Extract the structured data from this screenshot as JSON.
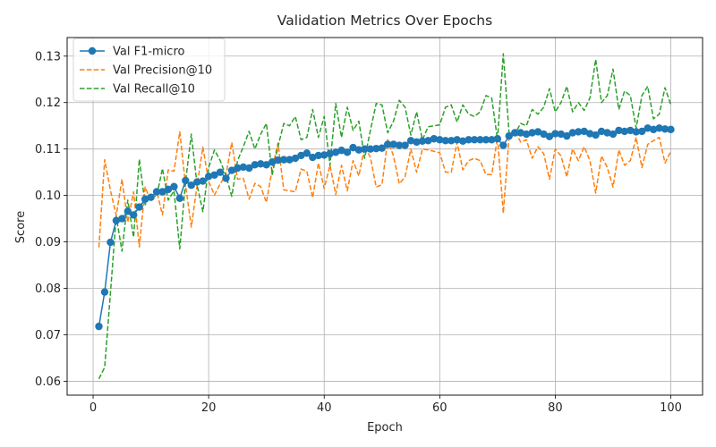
{
  "chart_data": {
    "type": "line",
    "title": "Validation Metrics Over Epochs",
    "xlabel": "Epoch",
    "ylabel": "Score",
    "xlim": [
      -4.5,
      105.5
    ],
    "ylim": [
      0.057,
      0.134
    ],
    "xticks": [
      0,
      20,
      40,
      60,
      80,
      100
    ],
    "yticks": [
      0.06,
      0.07,
      0.08,
      0.09,
      0.1,
      0.11,
      0.12,
      0.13
    ],
    "grid": true,
    "legend": "top-left",
    "x": [
      1,
      2,
      3,
      4,
      5,
      6,
      7,
      8,
      9,
      10,
      11,
      12,
      13,
      14,
      15,
      16,
      17,
      18,
      19,
      20,
      21,
      22,
      23,
      24,
      25,
      26,
      27,
      28,
      29,
      30,
      31,
      32,
      33,
      34,
      35,
      36,
      37,
      38,
      39,
      40,
      41,
      42,
      43,
      44,
      45,
      46,
      47,
      48,
      49,
      50,
      51,
      52,
      53,
      54,
      55,
      56,
      57,
      58,
      59,
      60,
      61,
      62,
      63,
      64,
      65,
      66,
      67,
      68,
      69,
      70,
      71,
      72,
      73,
      74,
      75,
      76,
      77,
      78,
      79,
      80,
      81,
      82,
      83,
      84,
      85,
      86,
      87,
      88,
      89,
      90,
      91,
      92,
      93,
      94,
      95,
      96,
      97,
      98,
      99,
      100
    ],
    "series": [
      {
        "name": "Val F1-micro",
        "color": "#1f77b4",
        "style": "solid-markers",
        "values": [
          0.0718,
          0.0792,
          0.0899,
          0.0946,
          0.095,
          0.0966,
          0.0958,
          0.0975,
          0.0992,
          0.0996,
          0.1008,
          0.1008,
          0.1013,
          0.1019,
          0.0994,
          0.1032,
          0.1022,
          0.1029,
          0.1031,
          0.1041,
          0.1044,
          0.105,
          0.1037,
          0.1054,
          0.1059,
          0.1061,
          0.1059,
          0.1066,
          0.1068,
          0.1066,
          0.1072,
          0.1076,
          0.1077,
          0.1077,
          0.108,
          0.1086,
          0.1091,
          0.1082,
          0.1086,
          0.1087,
          0.109,
          0.1093,
          0.1097,
          0.1093,
          0.1103,
          0.1098,
          0.11,
          0.11,
          0.1101,
          0.1102,
          0.111,
          0.111,
          0.1108,
          0.1108,
          0.1118,
          0.1115,
          0.1117,
          0.1118,
          0.1122,
          0.112,
          0.1118,
          0.1118,
          0.112,
          0.1117,
          0.112,
          0.112,
          0.112,
          0.112,
          0.112,
          0.1122,
          0.1108,
          0.1128,
          0.1135,
          0.1135,
          0.1132,
          0.1135,
          0.1137,
          0.1132,
          0.1127,
          0.1133,
          0.1132,
          0.1128,
          0.1135,
          0.1137,
          0.1138,
          0.1133,
          0.113,
          0.1138,
          0.1135,
          0.1132,
          0.114,
          0.1138,
          0.114,
          0.1137,
          0.1138,
          0.1145,
          0.1142,
          0.1145,
          0.1143,
          0.1142
        ]
      },
      {
        "name": "Val Precision@10",
        "color": "#ff7f0e",
        "style": "dashed",
        "values": [
          0.0888,
          0.1077,
          0.1011,
          0.0957,
          0.1035,
          0.0942,
          0.1008,
          0.0889,
          0.1018,
          0.0987,
          0.101,
          0.0958,
          0.1055,
          0.1052,
          0.1137,
          0.1022,
          0.0932,
          0.1022,
          0.1104,
          0.103,
          0.1001,
          0.1025,
          0.1044,
          0.1114,
          0.1035,
          0.1037,
          0.0992,
          0.1026,
          0.1019,
          0.0985,
          0.1057,
          0.1113,
          0.1012,
          0.101,
          0.1008,
          0.1057,
          0.1052,
          0.0995,
          0.107,
          0.1015,
          0.1065,
          0.1002,
          0.1065,
          0.101,
          0.1075,
          0.1042,
          0.1105,
          0.1082,
          0.1018,
          0.1023,
          0.112,
          0.1085,
          0.1025,
          0.104,
          0.11,
          0.105,
          0.11,
          0.1098,
          0.1095,
          0.1092,
          0.105,
          0.105,
          0.1115,
          0.1055,
          0.1075,
          0.108,
          0.1075,
          0.1045,
          0.1045,
          0.1125,
          0.0962,
          0.1125,
          0.114,
          0.1115,
          0.112,
          0.108,
          0.1105,
          0.109,
          0.1035,
          0.11,
          0.1085,
          0.104,
          0.11,
          0.1075,
          0.1105,
          0.1075,
          0.1005,
          0.1085,
          0.106,
          0.1018,
          0.1098,
          0.1065,
          0.1075,
          0.1125,
          0.106,
          0.111,
          0.1118,
          0.1125,
          0.107,
          0.1095
        ]
      },
      {
        "name": "Val Recall@10",
        "color": "#2ca02c",
        "style": "dashed",
        "values": [
          0.0605,
          0.063,
          0.079,
          0.0955,
          0.088,
          0.099,
          0.091,
          0.1078,
          0.098,
          0.1,
          0.0998,
          0.1058,
          0.099,
          0.101,
          0.0885,
          0.103,
          0.1132,
          0.1022,
          0.0965,
          0.106,
          0.1098,
          0.1075,
          0.1042,
          0.0998,
          0.1075,
          0.1105,
          0.1138,
          0.11,
          0.1132,
          0.1155,
          0.1045,
          0.1105,
          0.1155,
          0.115,
          0.117,
          0.112,
          0.1125,
          0.1185,
          0.1125,
          0.117,
          0.1065,
          0.1198,
          0.1125,
          0.119,
          0.114,
          0.116,
          0.108,
          0.114,
          0.1198,
          0.1195,
          0.1135,
          0.116,
          0.1205,
          0.119,
          0.113,
          0.118,
          0.112,
          0.1148,
          0.115,
          0.1152,
          0.119,
          0.1195,
          0.1158,
          0.1195,
          0.1175,
          0.117,
          0.118,
          0.1215,
          0.121,
          0.112,
          0.1305,
          0.1135,
          0.1132,
          0.1155,
          0.115,
          0.1185,
          0.1175,
          0.119,
          0.123,
          0.118,
          0.12,
          0.1235,
          0.118,
          0.12,
          0.1183,
          0.121,
          0.1293,
          0.12,
          0.1215,
          0.1272,
          0.1185,
          0.1225,
          0.1215,
          0.1145,
          0.1215,
          0.1235,
          0.1165,
          0.1175,
          0.1232,
          0.1195
        ]
      }
    ]
  }
}
